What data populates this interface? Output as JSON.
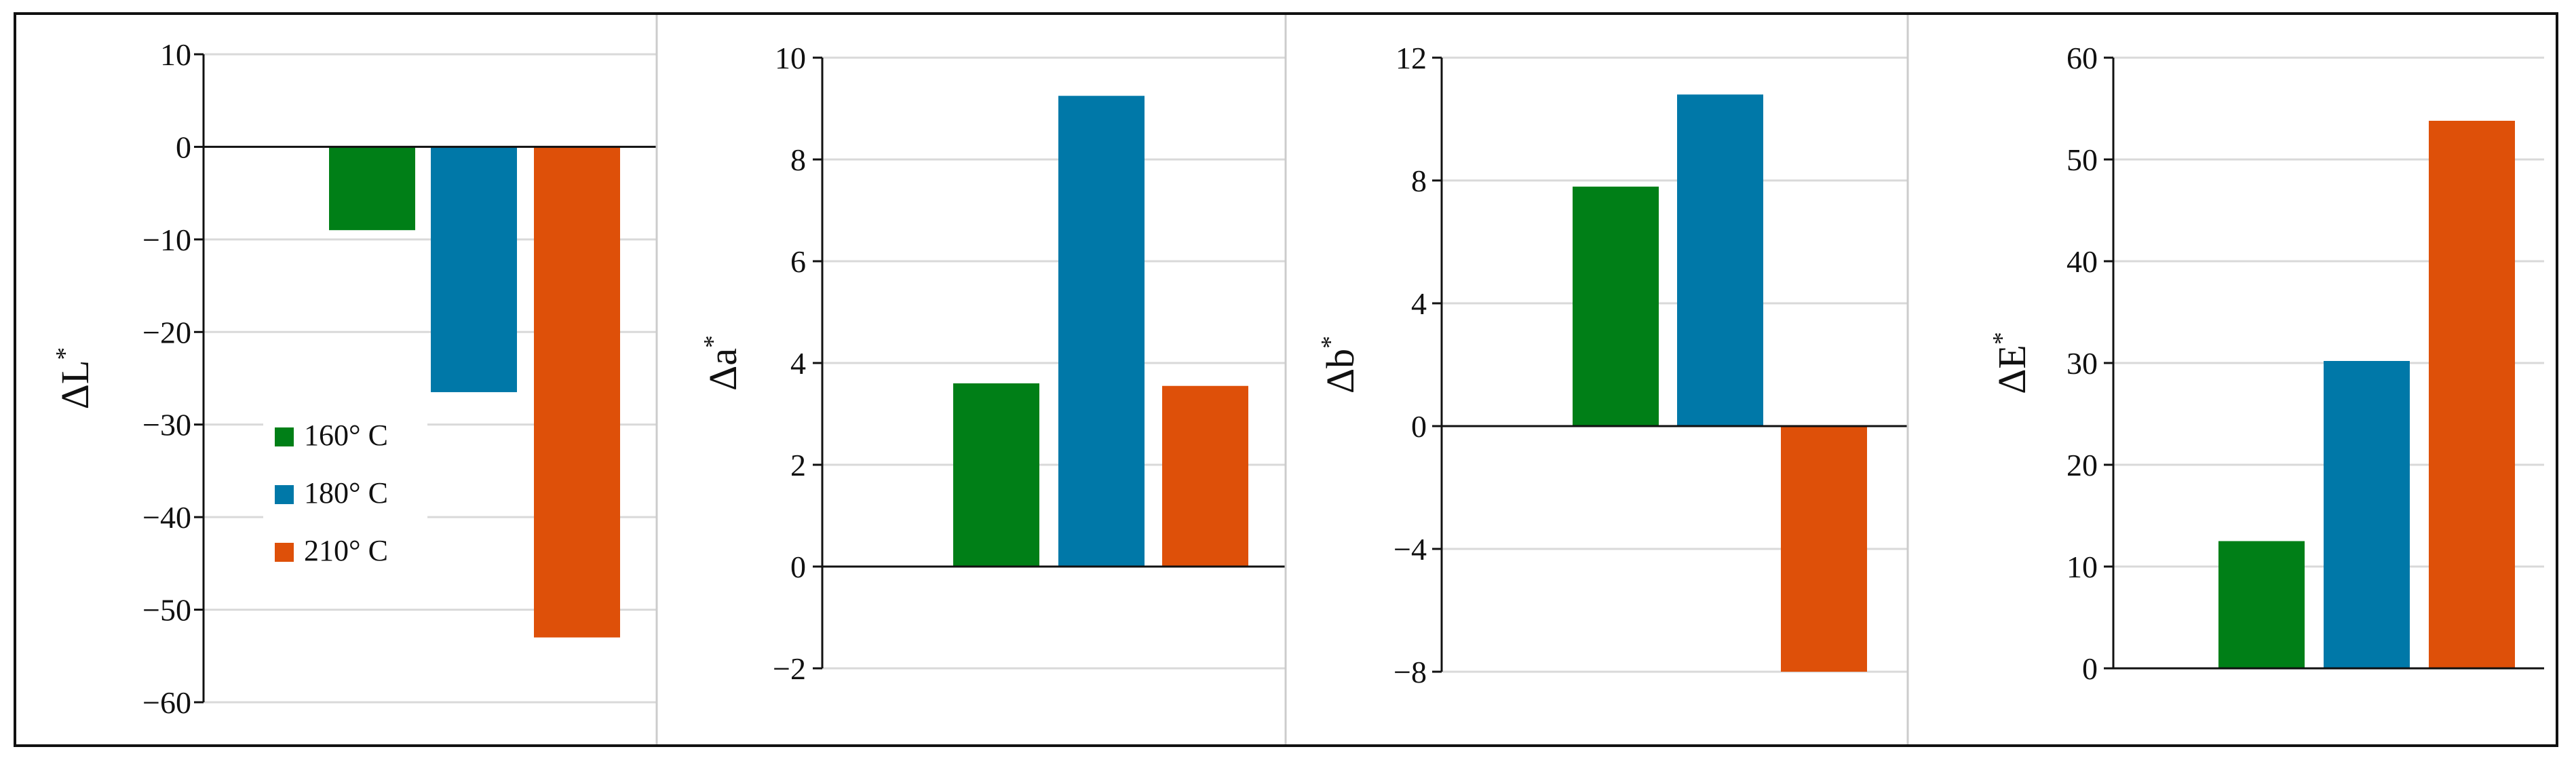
{
  "chart_data": [
    {
      "type": "bar",
      "ylabel": "ΔL*",
      "ylabel_main": "ΔL",
      "ylabel_sup": "*",
      "yticks": [
        "10",
        "0",
        "-10",
        "-20",
        "-30",
        "-40",
        "-50",
        "-60"
      ],
      "ylim": [
        -60,
        10
      ],
      "grid": true,
      "legend": "inside-left",
      "series": [
        {
          "name": "160° C",
          "values": [
            -9
          ]
        },
        {
          "name": "180° C",
          "values": [
            -26.5
          ]
        },
        {
          "name": "210° C",
          "values": [
            -53
          ]
        }
      ]
    },
    {
      "type": "bar",
      "ylabel": "Δa*",
      "ylabel_main": "Δa",
      "ylabel_sup": "*",
      "yticks": [
        "10",
        "8",
        "6",
        "4",
        "2",
        "0",
        "-2"
      ],
      "ylim": [
        -2,
        10
      ],
      "grid": true,
      "series": [
        {
          "name": "160° C",
          "values": [
            3.6
          ]
        },
        {
          "name": "180° C",
          "values": [
            9.25
          ]
        },
        {
          "name": "210° C",
          "values": [
            3.55
          ]
        }
      ]
    },
    {
      "type": "bar",
      "ylabel": "Δb*",
      "ylabel_main": "Δb",
      "ylabel_sup": "*",
      "yticks": [
        "12",
        "8",
        "4",
        "0",
        "-4",
        "-8"
      ],
      "ylim": [
        -8,
        12
      ],
      "grid": true,
      "series": [
        {
          "name": "160° C",
          "values": [
            7.8
          ]
        },
        {
          "name": "180° C",
          "values": [
            10.8
          ]
        },
        {
          "name": "210° C",
          "values": [
            -8
          ]
        }
      ]
    },
    {
      "type": "bar",
      "ylabel": "ΔE*",
      "ylabel_main": "ΔE",
      "ylabel_sup": "*",
      "yticks": [
        "60",
        "50",
        "40",
        "30",
        "20",
        "10",
        "0"
      ],
      "ylim": [
        0,
        60
      ],
      "grid": true,
      "series": [
        {
          "name": "160° C",
          "values": [
            12.5
          ]
        },
        {
          "name": "180° C",
          "values": [
            30.2
          ]
        },
        {
          "name": "210° C",
          "values": [
            53.8
          ]
        }
      ]
    }
  ],
  "legend": {
    "items": [
      "160° C",
      "180° C",
      "210° C"
    ]
  },
  "colors": {
    "160° C": "#007f17",
    "180° C": "#0078a8",
    "210° C": "#de5009",
    "grid": "#d9d9d9",
    "axis": "#111111",
    "divider": "#cccccc"
  }
}
